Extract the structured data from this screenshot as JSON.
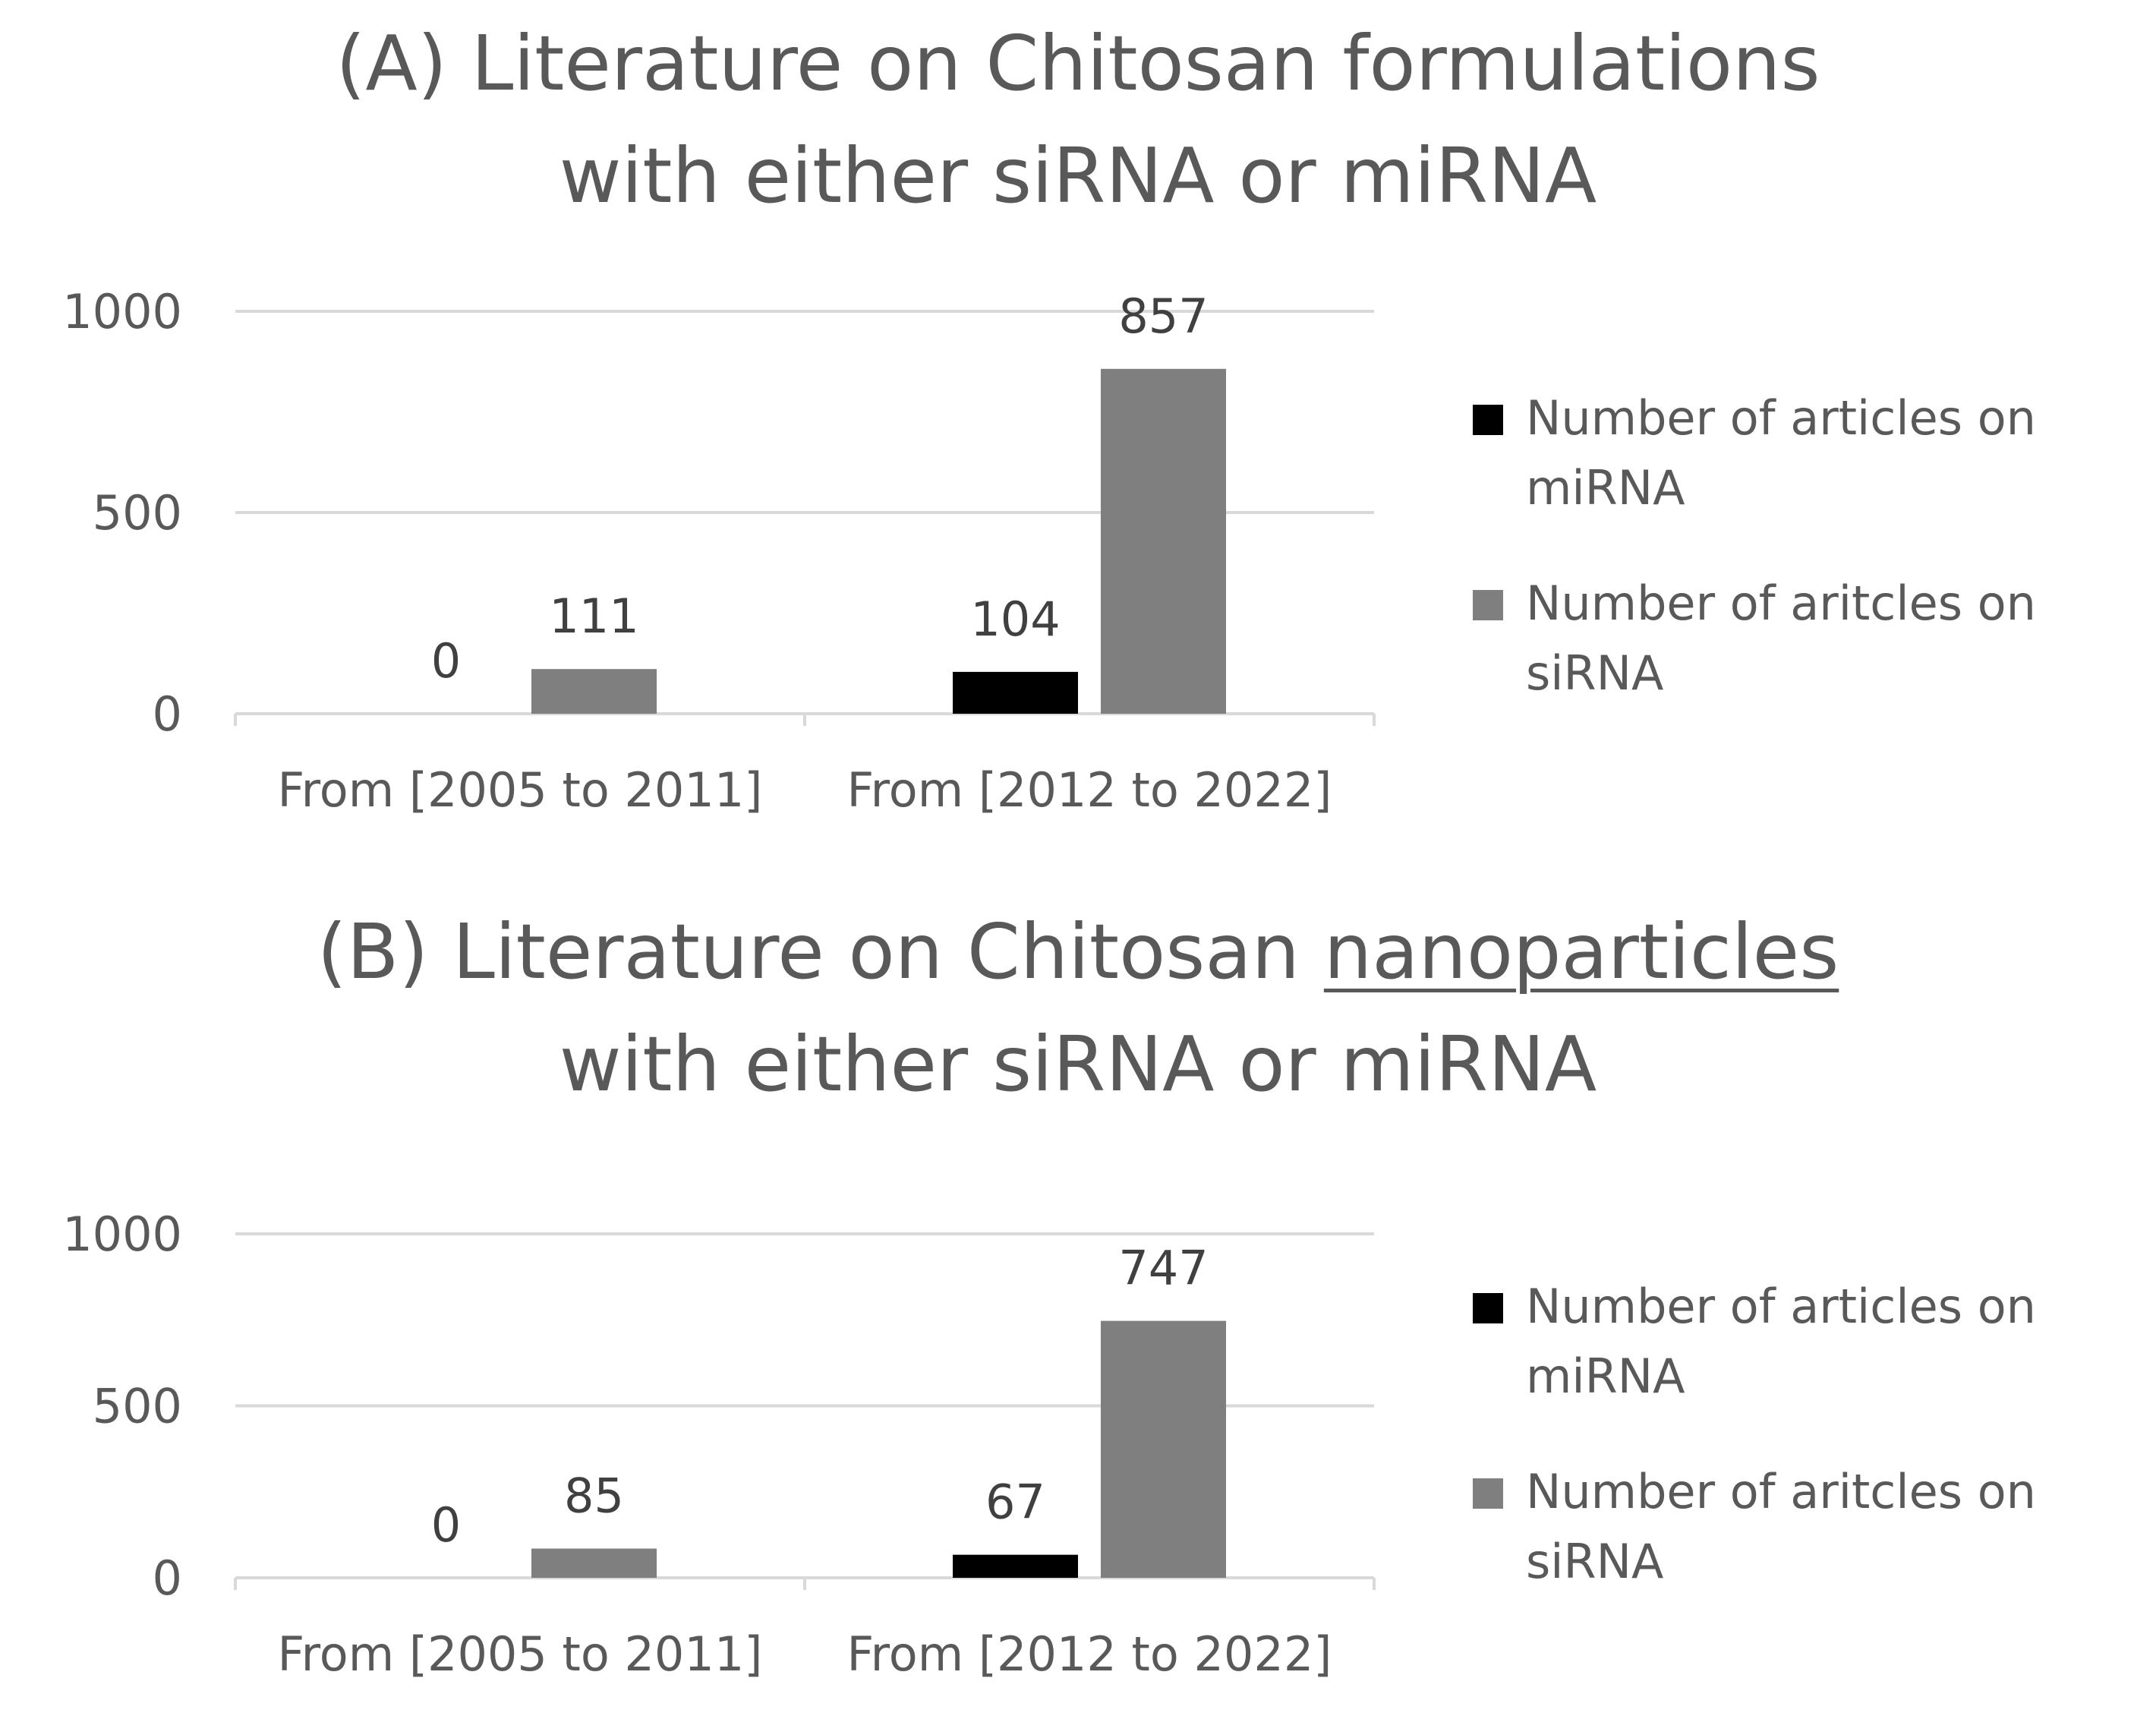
{
  "chart_data": [
    {
      "type": "bar",
      "title_prefix": "(A) Literature on Chitosan ",
      "title_emphasis": "formulations",
      "title_line2": "with either siRNA or miRNA",
      "categories": [
        "From [2005 to 2011]",
        "From [2012 to 2022]"
      ],
      "series": [
        {
          "name": "Number of articles on miRNA",
          "values": [
            0,
            104
          ],
          "color": "#000000"
        },
        {
          "name": "Number of aritcles on siRNA",
          "values": [
            111,
            857
          ],
          "color": "#7f7f7f"
        }
      ],
      "yticks": [
        0,
        500,
        1000
      ],
      "ylim": [
        0,
        1000
      ],
      "grid": true,
      "legend_position": "right"
    },
    {
      "type": "bar",
      "title_prefix": "(B) Literature on Chitosan ",
      "title_emphasis": "nanoparticles",
      "title_line2": "with either siRNA or miRNA",
      "categories": [
        "From [2005 to 2011]",
        "From [2012 to 2022]"
      ],
      "series": [
        {
          "name": "Number of articles on miRNA",
          "values": [
            0,
            67
          ],
          "color": "#000000"
        },
        {
          "name": "Number of aritcles on siRNA",
          "values": [
            85,
            747
          ],
          "color": "#7f7f7f"
        }
      ],
      "yticks": [
        0,
        500,
        1000
      ],
      "ylim": [
        0,
        1000
      ],
      "grid": true,
      "legend_position": "right"
    }
  ]
}
